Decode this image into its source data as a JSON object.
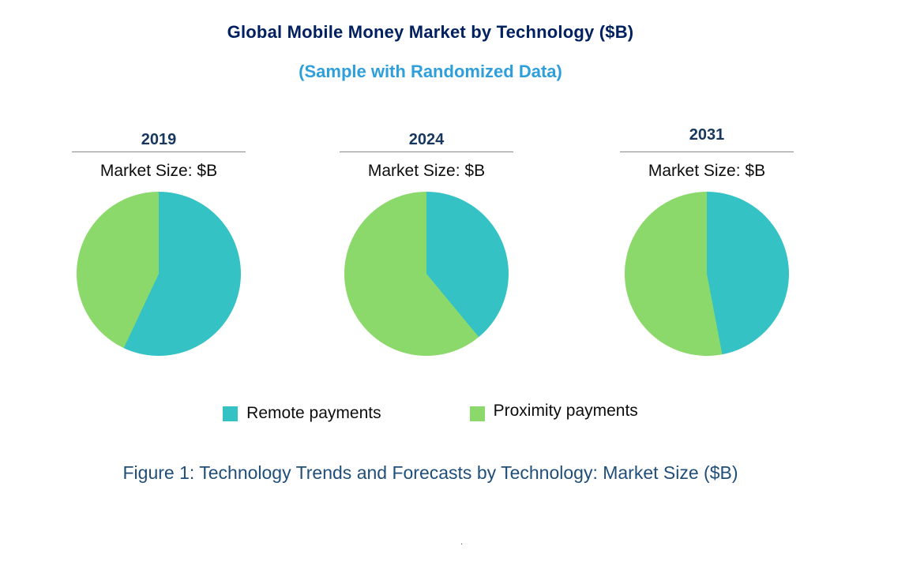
{
  "page": {
    "title": "Global Mobile Money Market by Technology ($B)",
    "subtitle": "(Sample with Randomized Data)",
    "caption": "Figure 1: Technology Trends and Forecasts by Technology: Market Size ($B)",
    "footnote_dot": "."
  },
  "colors": {
    "title": "#002060",
    "subtitle": "#2e9fda",
    "caption": "#1f4e79",
    "year_label": "#17375e",
    "remote": "#35c2c5",
    "proximity": "#8bd96b"
  },
  "legend": [
    {
      "label": "Remote payments",
      "color": "#35c2c5"
    },
    {
      "label": "Proximity payments",
      "color": "#8bd96b"
    }
  ],
  "chart_data": [
    {
      "type": "pie",
      "year": "2019",
      "axis_label": "Market Size: $B",
      "labels": [
        "Remote payments",
        "Proximity payments"
      ],
      "values_pct": [
        57,
        43
      ],
      "start_angle_deg": 0,
      "direction": "clockwise"
    },
    {
      "type": "pie",
      "year": "2024",
      "axis_label": "Market Size: $B",
      "labels": [
        "Remote payments",
        "Proximity payments"
      ],
      "values_pct": [
        39,
        61
      ],
      "start_angle_deg": 0,
      "direction": "clockwise"
    },
    {
      "type": "pie",
      "year": "2031",
      "axis_label": "Market Size: $B",
      "labels": [
        "Remote payments",
        "Proximity payments"
      ],
      "values_pct": [
        47,
        53
      ],
      "start_angle_deg": 0,
      "direction": "clockwise"
    }
  ]
}
